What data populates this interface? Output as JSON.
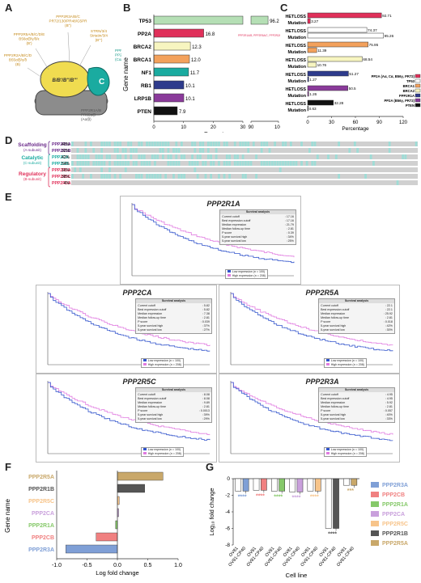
{
  "panels": {
    "A": "A",
    "B": "B",
    "C": "C",
    "D": "D",
    "E": "E",
    "F": "F",
    "G": "G"
  },
  "panelA": {
    "labels": [
      {
        "text": "PPP2R3A/B/C\nPR72/130/PR48/G5PR\n(B'')",
        "color": "#c58a1a"
      },
      {
        "text": "PPP2R5A/B/C/D/E\nB56α/β/γ/δ/ε\n(B')",
        "color": "#c58a1a"
      },
      {
        "text": "STRN/3/4\nStriatin/3/4\n(B''')",
        "color": "#c58a1a"
      },
      {
        "text": "PPP2R2A/B/C/D\nB55α/β/γ/δ\n(B)",
        "color": "#c58a1a"
      },
      {
        "text": "PPP2CA/B\nPP2Ac\n(Cα/β)",
        "color": "#1a9a8a"
      },
      {
        "text": "PPP2R1A/B\nPR65α/β\n(Aα/β)",
        "color": "#555"
      }
    ],
    "b_label": "B/B'/B''/B'''",
    "c_label": "C"
  },
  "panelB": {
    "ylabel": "Gene name",
    "xlabel": "Percentage",
    "ticks_left": [
      "0",
      "10",
      "20",
      "30"
    ],
    "ticks_right": [
      "90",
      "100"
    ],
    "note": "PPP2R1A/B, PPP2R5A/C, PPP2R2A",
    "bars": [
      {
        "gene": "TP53",
        "value": 96.2,
        "label": "96.2",
        "color": "#b5dfb5"
      },
      {
        "gene": "PP2A",
        "value": 16.8,
        "label": "16.8",
        "color": "#e0305a"
      },
      {
        "gene": "BRCA2",
        "value": 12.3,
        "label": "12.3",
        "color": "#f7f5c0"
      },
      {
        "gene": "BRCA1",
        "value": 12.0,
        "label": "12.0",
        "color": "#f3a15c"
      },
      {
        "gene": "NF1",
        "value": 11.7,
        "label": "11.7",
        "color": "#1aaba0"
      },
      {
        "gene": "RB1",
        "value": 10.1,
        "label": "10.1",
        "color": "#2e3b8c"
      },
      {
        "gene": "LRP1B",
        "value": 10.1,
        "label": "10.1",
        "color": "#8a3a9a"
      },
      {
        "gene": "PTEN",
        "value": 7.9,
        "label": "7.9",
        "color": "#111111"
      }
    ]
  },
  "panelC": {
    "xlabel": "Percentage",
    "ticks": [
      "0",
      "30",
      "60",
      "90",
      "120"
    ],
    "row_labels": [
      "HETLOSS",
      "Mutation"
    ],
    "groups": [
      {
        "het": 92.71,
        "mut": 3.27,
        "het_label": "92.71",
        "mut_label": "3.27",
        "color": "#e0305a"
      },
      {
        "het": 74.37,
        "mut": 95.26,
        "het_label": "74.37",
        "mut_label": "95.26",
        "color": "#ffffff"
      },
      {
        "het": 75.95,
        "mut": 11.39,
        "het_label": "75.95",
        "mut_label": "11.39",
        "color": "#f3a15c"
      },
      {
        "het": 68.54,
        "mut": 10.76,
        "het_label": "68.54",
        "mut_label": "10.76",
        "color": "#f7f5c0"
      },
      {
        "het": 51.27,
        "mut": 1.27,
        "het_label": "51.27",
        "mut_label": "1.27",
        "color": "#2e3b8c"
      },
      {
        "het": 50.5,
        "mut": 1.26,
        "het_label": "50.5",
        "mut_label": "1.26",
        "color": "#8a3a9a"
      },
      {
        "het": 32.28,
        "mut": 0.63,
        "het_label": "32.28",
        "mut_label": "0.63",
        "color": "#111111"
      }
    ],
    "legend": [
      {
        "label": "PP2A (Aα, Cα, B56γ, PR72)",
        "color": "#e0305a"
      },
      {
        "label": "TP53",
        "color": "#ffffff"
      },
      {
        "label": "BRCA1",
        "color": "#f3a15c"
      },
      {
        "label": "BRCA2",
        "color": "#f7f5c0"
      },
      {
        "label": "PPP2R1A",
        "color": "#2e3b8c"
      },
      {
        "label": "PP2A (B56γ, PR72)",
        "color": "#8a3a9a"
      },
      {
        "label": "PTEN",
        "color": "#111111"
      }
    ]
  },
  "panelD": {
    "groups": [
      {
        "title": "Scaffolding",
        "sub": "(A-subunit)",
        "color": "#6a2a8a",
        "genes": [
          {
            "name": "PPP2R1A",
            "pct": "49%"
          },
          {
            "name": "PPP2R1B",
            "pct": "32%"
          }
        ]
      },
      {
        "title": "Catalytic",
        "sub": "(C-subunit)",
        "color": "#1aaba0",
        "genes": [
          {
            "name": "PPP2CA",
            "pct": "42%"
          },
          {
            "name": "PPP2CB",
            "pct": "54%"
          }
        ]
      },
      {
        "title": "Regulatory",
        "sub": "(B-subunit)",
        "color": "#e0305a",
        "genes": [
          {
            "name": "PPP2R5A",
            "pct": "16%"
          },
          {
            "name": "PPP2R5C",
            "pct": "38%"
          },
          {
            "name": "PPP2R3A",
            "pct": "4%"
          }
        ]
      }
    ]
  },
  "panelE": {
    "plots": [
      {
        "gene": "PPP2R1A",
        "stats": [
          [
            "Current cutoff",
            ": 17.16"
          ],
          [
            "Best expression cutoff",
            ": 17.16"
          ],
          [
            "Median expression",
            ": 21.79"
          ],
          [
            "Median follow-up time",
            ": 2.81"
          ],
          [
            "P score",
            ": 0.39"
          ],
          [
            "5-year survival high",
            ": 34%"
          ],
          [
            "5-year survival low",
            ": 25%"
          ]
        ]
      },
      {
        "gene": "PPP2CA",
        "stats": [
          [
            "Current cutoff",
            ": 5.82"
          ],
          [
            "Best expression cutoff",
            ": 5.82"
          ],
          [
            "Median expression",
            ": 7.38"
          ],
          [
            "Median follow-up time",
            ": 2.81"
          ],
          [
            "P score",
            ": 0.039"
          ],
          [
            "5-year survival high",
            ": 37%"
          ],
          [
            "5-year survival low",
            ": 27%"
          ]
        ]
      },
      {
        "gene": "PPP2R5A",
        "stats": [
          [
            "Current cutoff",
            ": 22.1"
          ],
          [
            "Best expression cutoff",
            ": 22.1"
          ],
          [
            "Median expression",
            ": 25.92"
          ],
          [
            "Median follow-up time",
            ": 2.81"
          ],
          [
            "P score",
            ": 0.018"
          ],
          [
            "5-year survival high",
            ": 42%"
          ],
          [
            "5-year survival low",
            ": 30%"
          ]
        ]
      },
      {
        "gene": "PPP2R5C",
        "stats": [
          [
            "Current cutoff",
            ": 8.08"
          ],
          [
            "Best expression cutoff",
            ": 8.08"
          ],
          [
            "Median expression",
            ": 9.89"
          ],
          [
            "Median follow-up time",
            ": 2.81"
          ],
          [
            "P score",
            ": 0.0013"
          ],
          [
            "5-year survival high",
            ": 39%"
          ],
          [
            "5-year survival low",
            ": 29%"
          ]
        ]
      },
      {
        "gene": "PPP2R3A",
        "stats": [
          [
            "Current cutoff",
            ": 4.95"
          ],
          [
            "Best expression cutoff",
            ": 4.95"
          ],
          [
            "Median expression",
            ": 5.92"
          ],
          [
            "Median follow-up time",
            ": 2.81"
          ],
          [
            "P score",
            ": 0.057"
          ],
          [
            "5-year survival high",
            ": 40%"
          ],
          [
            "5-year survival low",
            ": 33%"
          ]
        ]
      }
    ],
    "stats_header": "Survival analysis",
    "legend_low": "Low expression (n = 100)",
    "legend_high": "High expression (n = 208)"
  },
  "chart_data": {
    "type": "bar",
    "title": "",
    "xlabel": "Log fold change",
    "ylabel": "Gene name",
    "xlim": [
      -1.0,
      1.0
    ],
    "xticks": [
      "-1.0",
      "-0.5",
      "0.0",
      "0.5",
      "1.0"
    ],
    "categories": [
      "PPP2R5A",
      "PPP2R1B",
      "PPP2R5C",
      "PPP2CA",
      "PPP2R1A",
      "PPP2CB",
      "PPP2R3A"
    ],
    "values": [
      0.75,
      0.45,
      0.03,
      0.02,
      -0.03,
      -0.35,
      -0.85
    ],
    "colors": [
      "#c9a86a",
      "#555555",
      "#f7c48a",
      "#c9a0dc",
      "#86c96a",
      "#f08080",
      "#7f9fd6"
    ]
  },
  "panelG": {
    "ylabel": "Log₁₀ fold change",
    "xlabel": "Cell line",
    "yticks": [
      "0",
      "-2",
      "-4",
      "-6",
      "-8"
    ],
    "cell_lines": [
      "OV81",
      "OV81-CP40"
    ],
    "stars": "****",
    "stars3": "***",
    "groups": [
      {
        "name": "PPP2R3A",
        "color": "#7f9fd6",
        "value": -1.5
      },
      {
        "name": "PPP2CB",
        "color": "#f08080",
        "value": -1.4
      },
      {
        "name": "PPP2R1A",
        "color": "#86c96a",
        "value": -1.5
      },
      {
        "name": "PPP2CA",
        "color": "#c9a0dc",
        "value": -1.6
      },
      {
        "name": "PPP2R5C",
        "color": "#f7c48a",
        "value": -1.5
      },
      {
        "name": "PPP2R1B",
        "color": "#555555",
        "value": -6.0
      },
      {
        "name": "PPP2R5A",
        "color": "#c9a86a",
        "value": -0.8
      }
    ]
  }
}
